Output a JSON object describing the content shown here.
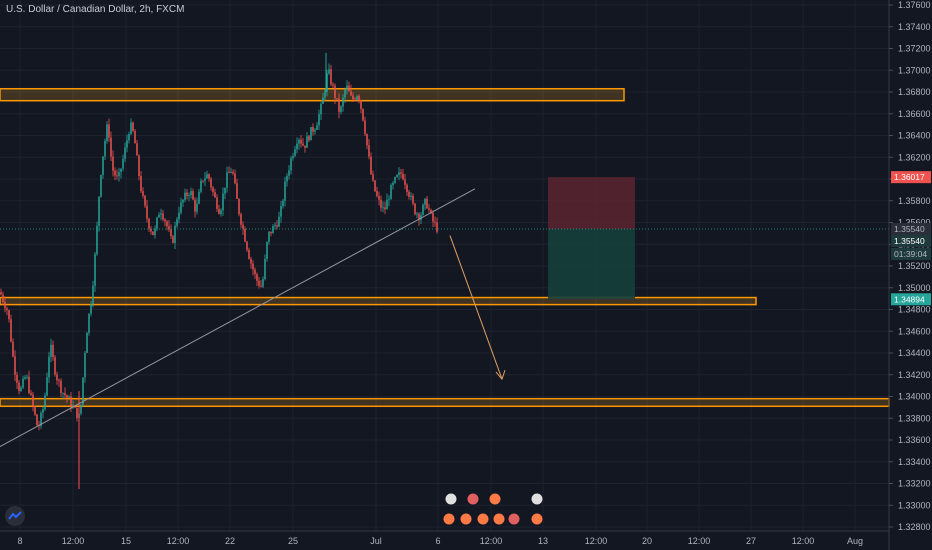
{
  "header": {
    "symbol_title": "U.S. Dollar / Canadian Dollar, 2h, FXCM"
  },
  "colors": {
    "background": "#131722",
    "grid": "#1e2230",
    "up_candle": "#26a69a",
    "down_candle": "#ef5350",
    "zone_fill": "#f5a623",
    "zone_border": "#ff9800",
    "trendline": "#9598a1",
    "arrow": "#e0a060",
    "stop_box": "#5a2430",
    "target_box": "#163f3c"
  },
  "chart_data": {
    "type": "candlestick",
    "ylim": [
      1.328,
      1.376
    ],
    "y_ticks": [
      "1.37600",
      "1.37400",
      "1.37200",
      "1.37000",
      "1.36800",
      "1.36600",
      "1.36400",
      "1.36200",
      "1.36000",
      "1.35800",
      "1.35600",
      "1.35400",
      "1.35200",
      "1.35000",
      "1.34800",
      "1.34600",
      "1.34400",
      "1.34200",
      "1.34000",
      "1.33800",
      "1.33600",
      "1.33400",
      "1.33200",
      "1.33000",
      "1.32800"
    ],
    "x_ticks": [
      "8",
      "12:00",
      "15",
      "12:00",
      "22",
      "25",
      "Jul",
      "6",
      "12:00",
      "13",
      "12:00",
      "20",
      "12:00",
      "27",
      "12:00",
      "Aug"
    ],
    "price_labels": [
      {
        "value": "1.36017",
        "role": "stop"
      },
      {
        "value": "1.35540",
        "role": "current"
      },
      {
        "value": "1.35540",
        "role": "entry"
      },
      {
        "value": "01:39:04",
        "role": "countdown"
      },
      {
        "value": "1.34894",
        "role": "target"
      }
    ],
    "zones": [
      {
        "name": "resistance",
        "low": 1.3672,
        "high": 1.3683
      },
      {
        "name": "support-mid",
        "low": 1.34845,
        "high": 1.3491
      },
      {
        "name": "support-low",
        "low": 1.3391,
        "high": 1.3398
      }
    ],
    "position": {
      "type": "short",
      "entry": 1.3554,
      "stop": 1.36017,
      "target": 1.34894
    },
    "trendline": {
      "from": [
        0,
        1.3354
      ],
      "to": [
        475,
        1.3591
      ]
    },
    "projection_arrow": {
      "from": [
        450,
        1.3548
      ],
      "to": [
        502,
        1.3416
      ]
    },
    "candles_path": [
      [
        0,
        1.3496
      ],
      [
        8,
        1.3478
      ],
      [
        14,
        1.3428
      ],
      [
        20,
        1.3404
      ],
      [
        26,
        1.342
      ],
      [
        32,
        1.3394
      ],
      [
        38,
        1.337
      ],
      [
        44,
        1.3392
      ],
      [
        50,
        1.3448
      ],
      [
        56,
        1.342
      ],
      [
        62,
        1.3405
      ],
      [
        68,
        1.3398
      ],
      [
        74,
        1.3388
      ],
      [
        80,
        1.338
      ],
      [
        86,
        1.3455
      ],
      [
        92,
        1.3495
      ],
      [
        96,
        1.354
      ],
      [
        100,
        1.36
      ],
      [
        104,
        1.363
      ],
      [
        108,
        1.3652
      ],
      [
        112,
        1.361
      ],
      [
        118,
        1.3598
      ],
      [
        124,
        1.3622
      ],
      [
        130,
        1.365
      ],
      [
        134,
        1.364
      ],
      [
        138,
        1.361
      ],
      [
        142,
        1.3585
      ],
      [
        148,
        1.356
      ],
      [
        154,
        1.3548
      ],
      [
        160,
        1.3574
      ],
      [
        166,
        1.356
      ],
      [
        172,
        1.354
      ],
      [
        178,
        1.357
      ],
      [
        184,
        1.3582
      ],
      [
        190,
        1.359
      ],
      [
        196,
        1.357
      ],
      [
        202,
        1.36
      ],
      [
        208,
        1.3604
      ],
      [
        214,
        1.3584
      ],
      [
        220,
        1.357
      ],
      [
        226,
        1.36
      ],
      [
        232,
        1.361
      ],
      [
        238,
        1.3574
      ],
      [
        244,
        1.355
      ],
      [
        250,
        1.3526
      ],
      [
        256,
        1.3508
      ],
      [
        262,
        1.35
      ],
      [
        268,
        1.3548
      ],
      [
        274,
        1.3556
      ],
      [
        280,
        1.3565
      ],
      [
        286,
        1.36
      ],
      [
        292,
        1.3622
      ],
      [
        298,
        1.364
      ],
      [
        304,
        1.363
      ],
      [
        310,
        1.3642
      ],
      [
        316,
        1.365
      ],
      [
        322,
        1.3668
      ],
      [
        328,
        1.37
      ],
      [
        334,
        1.368
      ],
      [
        340,
        1.366
      ],
      [
        346,
        1.3686
      ],
      [
        352,
        1.3672
      ],
      [
        358,
        1.368
      ],
      [
        364,
        1.3652
      ],
      [
        368,
        1.3624
      ],
      [
        372,
        1.3598
      ],
      [
        378,
        1.358
      ],
      [
        384,
        1.357
      ],
      [
        390,
        1.3588
      ],
      [
        396,
        1.36
      ],
      [
        402,
        1.3606
      ],
      [
        408,
        1.359
      ],
      [
        414,
        1.3572
      ],
      [
        420,
        1.3566
      ],
      [
        426,
        1.358
      ],
      [
        432,
        1.3562
      ],
      [
        437,
        1.3555
      ]
    ]
  }
}
